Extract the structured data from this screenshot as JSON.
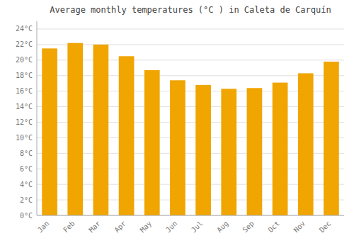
{
  "chart_data": {
    "type": "bar",
    "title": "Average monthly temperatures (°C ) in Caleta de Carquín",
    "categories": [
      "Jan",
      "Feb",
      "Mar",
      "Apr",
      "May",
      "Jun",
      "Jul",
      "Aug",
      "Sep",
      "Oct",
      "Nov",
      "Dec"
    ],
    "values": [
      21.5,
      22.2,
      22.0,
      20.5,
      18.7,
      17.4,
      16.8,
      16.3,
      16.4,
      17.1,
      18.3,
      19.8
    ],
    "color": "#F0A500",
    "ylim": [
      0,
      25
    ],
    "yticks": [
      {
        "value": 0,
        "label": "0°C"
      },
      {
        "value": 2,
        "label": "2°C"
      },
      {
        "value": 4,
        "label": "4°C"
      },
      {
        "value": 6,
        "label": "6°C"
      },
      {
        "value": 8,
        "label": "8°C"
      },
      {
        "value": 10,
        "label": "10°C"
      },
      {
        "value": 12,
        "label": "12°C"
      },
      {
        "value": 14,
        "label": "14°C"
      },
      {
        "value": 16,
        "label": "16°C"
      },
      {
        "value": 18,
        "label": "18°C"
      },
      {
        "value": 20,
        "label": "20°C"
      },
      {
        "value": 22,
        "label": "22°C"
      },
      {
        "value": 24,
        "label": "24°C"
      }
    ],
    "grid": true
  }
}
